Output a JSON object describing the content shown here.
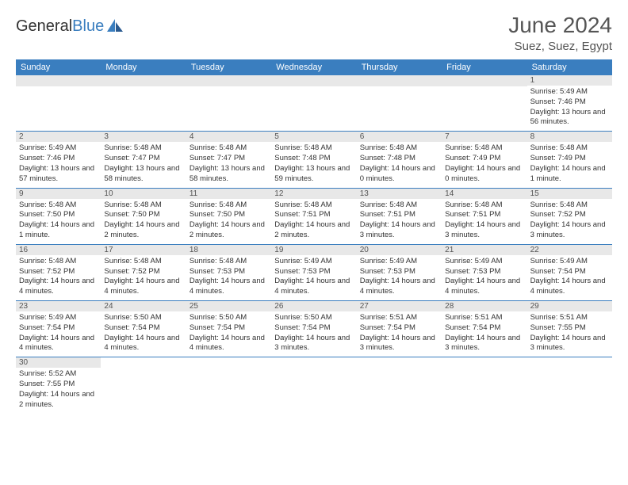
{
  "logo": {
    "text1": "General",
    "text2": "Blue"
  },
  "title": "June 2024",
  "location": "Suez, Suez, Egypt",
  "colors": {
    "header_bg": "#3a7ebf",
    "header_text": "#ffffff",
    "day_header_bg": "#e8e8e8",
    "row_border": "#3a7ebf",
    "text": "#333333",
    "title_text": "#555555"
  },
  "layout": {
    "columns": 7,
    "rows": 6
  },
  "days_of_week": [
    "Sunday",
    "Monday",
    "Tuesday",
    "Wednesday",
    "Thursday",
    "Friday",
    "Saturday"
  ],
  "weeks": [
    [
      {
        "empty": true
      },
      {
        "empty": true
      },
      {
        "empty": true
      },
      {
        "empty": true
      },
      {
        "empty": true
      },
      {
        "empty": true
      },
      {
        "n": "1",
        "sr": "Sunrise: 5:49 AM",
        "ss": "Sunset: 7:46 PM",
        "dl": "Daylight: 13 hours and 56 minutes."
      }
    ],
    [
      {
        "n": "2",
        "sr": "Sunrise: 5:49 AM",
        "ss": "Sunset: 7:46 PM",
        "dl": "Daylight: 13 hours and 57 minutes."
      },
      {
        "n": "3",
        "sr": "Sunrise: 5:48 AM",
        "ss": "Sunset: 7:47 PM",
        "dl": "Daylight: 13 hours and 58 minutes."
      },
      {
        "n": "4",
        "sr": "Sunrise: 5:48 AM",
        "ss": "Sunset: 7:47 PM",
        "dl": "Daylight: 13 hours and 58 minutes."
      },
      {
        "n": "5",
        "sr": "Sunrise: 5:48 AM",
        "ss": "Sunset: 7:48 PM",
        "dl": "Daylight: 13 hours and 59 minutes."
      },
      {
        "n": "6",
        "sr": "Sunrise: 5:48 AM",
        "ss": "Sunset: 7:48 PM",
        "dl": "Daylight: 14 hours and 0 minutes."
      },
      {
        "n": "7",
        "sr": "Sunrise: 5:48 AM",
        "ss": "Sunset: 7:49 PM",
        "dl": "Daylight: 14 hours and 0 minutes."
      },
      {
        "n": "8",
        "sr": "Sunrise: 5:48 AM",
        "ss": "Sunset: 7:49 PM",
        "dl": "Daylight: 14 hours and 1 minute."
      }
    ],
    [
      {
        "n": "9",
        "sr": "Sunrise: 5:48 AM",
        "ss": "Sunset: 7:50 PM",
        "dl": "Daylight: 14 hours and 1 minute."
      },
      {
        "n": "10",
        "sr": "Sunrise: 5:48 AM",
        "ss": "Sunset: 7:50 PM",
        "dl": "Daylight: 14 hours and 2 minutes."
      },
      {
        "n": "11",
        "sr": "Sunrise: 5:48 AM",
        "ss": "Sunset: 7:50 PM",
        "dl": "Daylight: 14 hours and 2 minutes."
      },
      {
        "n": "12",
        "sr": "Sunrise: 5:48 AM",
        "ss": "Sunset: 7:51 PM",
        "dl": "Daylight: 14 hours and 2 minutes."
      },
      {
        "n": "13",
        "sr": "Sunrise: 5:48 AM",
        "ss": "Sunset: 7:51 PM",
        "dl": "Daylight: 14 hours and 3 minutes."
      },
      {
        "n": "14",
        "sr": "Sunrise: 5:48 AM",
        "ss": "Sunset: 7:51 PM",
        "dl": "Daylight: 14 hours and 3 minutes."
      },
      {
        "n": "15",
        "sr": "Sunrise: 5:48 AM",
        "ss": "Sunset: 7:52 PM",
        "dl": "Daylight: 14 hours and 3 minutes."
      }
    ],
    [
      {
        "n": "16",
        "sr": "Sunrise: 5:48 AM",
        "ss": "Sunset: 7:52 PM",
        "dl": "Daylight: 14 hours and 4 minutes."
      },
      {
        "n": "17",
        "sr": "Sunrise: 5:48 AM",
        "ss": "Sunset: 7:52 PM",
        "dl": "Daylight: 14 hours and 4 minutes."
      },
      {
        "n": "18",
        "sr": "Sunrise: 5:48 AM",
        "ss": "Sunset: 7:53 PM",
        "dl": "Daylight: 14 hours and 4 minutes."
      },
      {
        "n": "19",
        "sr": "Sunrise: 5:49 AM",
        "ss": "Sunset: 7:53 PM",
        "dl": "Daylight: 14 hours and 4 minutes."
      },
      {
        "n": "20",
        "sr": "Sunrise: 5:49 AM",
        "ss": "Sunset: 7:53 PM",
        "dl": "Daylight: 14 hours and 4 minutes."
      },
      {
        "n": "21",
        "sr": "Sunrise: 5:49 AM",
        "ss": "Sunset: 7:53 PM",
        "dl": "Daylight: 14 hours and 4 minutes."
      },
      {
        "n": "22",
        "sr": "Sunrise: 5:49 AM",
        "ss": "Sunset: 7:54 PM",
        "dl": "Daylight: 14 hours and 4 minutes."
      }
    ],
    [
      {
        "n": "23",
        "sr": "Sunrise: 5:49 AM",
        "ss": "Sunset: 7:54 PM",
        "dl": "Daylight: 14 hours and 4 minutes."
      },
      {
        "n": "24",
        "sr": "Sunrise: 5:50 AM",
        "ss": "Sunset: 7:54 PM",
        "dl": "Daylight: 14 hours and 4 minutes."
      },
      {
        "n": "25",
        "sr": "Sunrise: 5:50 AM",
        "ss": "Sunset: 7:54 PM",
        "dl": "Daylight: 14 hours and 4 minutes."
      },
      {
        "n": "26",
        "sr": "Sunrise: 5:50 AM",
        "ss": "Sunset: 7:54 PM",
        "dl": "Daylight: 14 hours and 3 minutes."
      },
      {
        "n": "27",
        "sr": "Sunrise: 5:51 AM",
        "ss": "Sunset: 7:54 PM",
        "dl": "Daylight: 14 hours and 3 minutes."
      },
      {
        "n": "28",
        "sr": "Sunrise: 5:51 AM",
        "ss": "Sunset: 7:54 PM",
        "dl": "Daylight: 14 hours and 3 minutes."
      },
      {
        "n": "29",
        "sr": "Sunrise: 5:51 AM",
        "ss": "Sunset: 7:55 PM",
        "dl": "Daylight: 14 hours and 3 minutes."
      }
    ],
    [
      {
        "n": "30",
        "sr": "Sunrise: 5:52 AM",
        "ss": "Sunset: 7:55 PM",
        "dl": "Daylight: 14 hours and 2 minutes."
      },
      {
        "empty": true
      },
      {
        "empty": true
      },
      {
        "empty": true
      },
      {
        "empty": true
      },
      {
        "empty": true
      },
      {
        "empty": true
      }
    ]
  ]
}
